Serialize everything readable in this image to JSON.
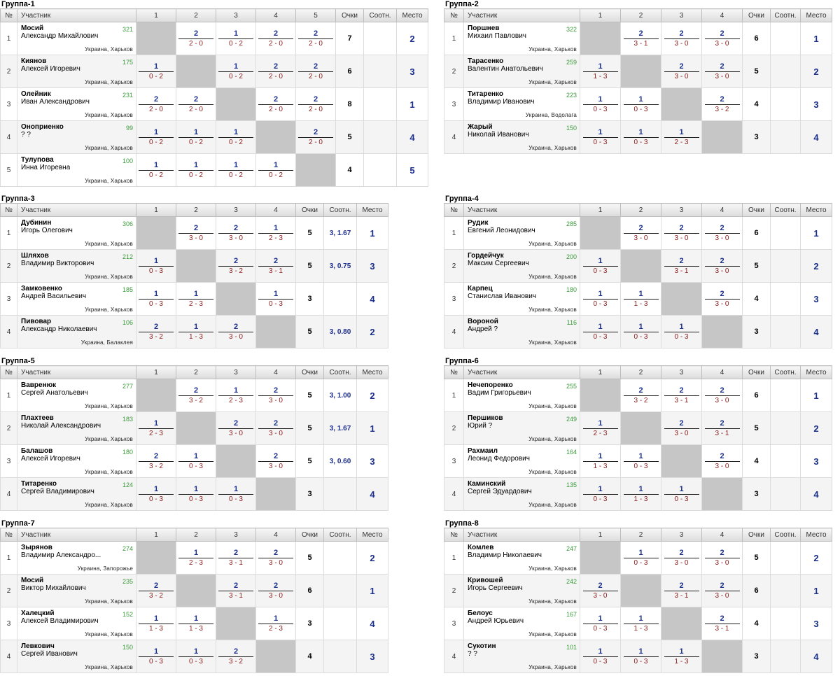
{
  "headers": {
    "num": "№",
    "player": "Участник",
    "points": "Очки",
    "ratio": "Соотн.",
    "place": "Место"
  },
  "groups": [
    {
      "title": "Группа-1",
      "players": [
        {
          "num": "1",
          "name": "Мосий",
          "first": "Александр Михайлович",
          "rating": "321",
          "loc": "Украина, Харьков",
          "results": [
            null,
            [
              "2",
              "2 - 0"
            ],
            [
              "1",
              "0 - 2"
            ],
            [
              "2",
              "2 - 0"
            ],
            [
              "2",
              "2 - 0"
            ]
          ],
          "points": "7",
          "ratio": "",
          "place": "2"
        },
        {
          "num": "2",
          "name": "Киянов",
          "first": "Алексей Игоревич",
          "rating": "175",
          "loc": "Украина, Харьков",
          "results": [
            [
              "1",
              "0 - 2"
            ],
            null,
            [
              "1",
              "0 - 2"
            ],
            [
              "2",
              "2 - 0"
            ],
            [
              "2",
              "2 - 0"
            ]
          ],
          "points": "6",
          "ratio": "",
          "place": "3"
        },
        {
          "num": "3",
          "name": "Олейник",
          "first": "Иван Александрович",
          "rating": "231",
          "loc": "Украина, Харьков",
          "results": [
            [
              "2",
              "2 - 0"
            ],
            [
              "2",
              "2 - 0"
            ],
            null,
            [
              "2",
              "2 - 0"
            ],
            [
              "2",
              "2 - 0"
            ]
          ],
          "points": "8",
          "ratio": "",
          "place": "1"
        },
        {
          "num": "4",
          "name": "Оноприенко",
          "first": "? ?",
          "rating": "99",
          "loc": "Украина, Харьков",
          "results": [
            [
              "1",
              "0 - 2"
            ],
            [
              "1",
              "0 - 2"
            ],
            [
              "1",
              "0 - 2"
            ],
            null,
            [
              "2",
              "2 - 0"
            ]
          ],
          "points": "5",
          "ratio": "",
          "place": "4"
        },
        {
          "num": "5",
          "name": "Тулупова",
          "first": "Инна Игоревна",
          "rating": "100",
          "loc": "Украина, Харьков",
          "results": [
            [
              "1",
              "0 - 2"
            ],
            [
              "1",
              "0 - 2"
            ],
            [
              "1",
              "0 - 2"
            ],
            [
              "1",
              "0 - 2"
            ],
            null
          ],
          "points": "4",
          "ratio": "",
          "place": "5"
        }
      ]
    },
    {
      "title": "Группа-2",
      "players": [
        {
          "num": "1",
          "name": "Поршнев",
          "first": "Михаил Павлович",
          "rating": "322",
          "loc": "Украина, Харьков",
          "results": [
            null,
            [
              "2",
              "3 - 1"
            ],
            [
              "2",
              "3 - 0"
            ],
            [
              "2",
              "3 - 0"
            ]
          ],
          "points": "6",
          "ratio": "",
          "place": "1"
        },
        {
          "num": "2",
          "name": "Тарасенко",
          "first": "Валентин Анатольевич",
          "rating": "259",
          "loc": "Украина, Харьков",
          "results": [
            [
              "1",
              "1 - 3"
            ],
            null,
            [
              "2",
              "3 - 0"
            ],
            [
              "2",
              "3 - 0"
            ]
          ],
          "points": "5",
          "ratio": "",
          "place": "2"
        },
        {
          "num": "3",
          "name": "Титаренко",
          "first": "Владимир Иванович",
          "rating": "223",
          "loc": "Украина, Водолага",
          "results": [
            [
              "1",
              "0 - 3"
            ],
            [
              "1",
              "0 - 3"
            ],
            null,
            [
              "2",
              "3 - 2"
            ]
          ],
          "points": "4",
          "ratio": "",
          "place": "3"
        },
        {
          "num": "4",
          "name": "Жарый",
          "first": "Николай Иванович",
          "rating": "150",
          "loc": "Украина, Харьков",
          "results": [
            [
              "1",
              "0 - 3"
            ],
            [
              "1",
              "0 - 3"
            ],
            [
              "1",
              "2 - 3"
            ],
            null
          ],
          "points": "3",
          "ratio": "",
          "place": "4"
        }
      ]
    },
    {
      "title": "Группа-3",
      "players": [
        {
          "num": "1",
          "name": "Дубинин",
          "first": "Игорь Олегович",
          "rating": "306",
          "loc": "Украина, Харьков",
          "results": [
            null,
            [
              "2",
              "3 - 0"
            ],
            [
              "2",
              "3 - 0"
            ],
            [
              "1",
              "2 - 3"
            ]
          ],
          "points": "5",
          "ratio": "3, 1.67",
          "place": "1"
        },
        {
          "num": "2",
          "name": "Шляхов",
          "first": "Владимир Викторович",
          "rating": "212",
          "loc": "Украина, Харьков",
          "results": [
            [
              "1",
              "0 - 3"
            ],
            null,
            [
              "2",
              "3 - 2"
            ],
            [
              "2",
              "3 - 1"
            ]
          ],
          "points": "5",
          "ratio": "3, 0.75",
          "place": "3"
        },
        {
          "num": "3",
          "name": "Замковенко",
          "first": "Андрей Васильевич",
          "rating": "185",
          "loc": "Украина, Харьков",
          "results": [
            [
              "1",
              "0 - 3"
            ],
            [
              "1",
              "2 - 3"
            ],
            null,
            [
              "1",
              "0 - 3"
            ]
          ],
          "points": "3",
          "ratio": "",
          "place": "4"
        },
        {
          "num": "4",
          "name": "Пивовар",
          "first": "Александр Николаевич",
          "rating": "106",
          "loc": "Украина, Балаклея",
          "results": [
            [
              "2",
              "3 - 2"
            ],
            [
              "1",
              "1 - 3"
            ],
            [
              "2",
              "3 - 0"
            ],
            null
          ],
          "points": "5",
          "ratio": "3, 0.80",
          "place": "2"
        }
      ]
    },
    {
      "title": "Группа-4",
      "players": [
        {
          "num": "1",
          "name": "Рудик",
          "first": "Евгений Леонидович",
          "rating": "285",
          "loc": "Украина, Харьков",
          "results": [
            null,
            [
              "2",
              "3 - 0"
            ],
            [
              "2",
              "3 - 0"
            ],
            [
              "2",
              "3 - 0"
            ]
          ],
          "points": "6",
          "ratio": "",
          "place": "1"
        },
        {
          "num": "2",
          "name": "Гордейчук",
          "first": "Максим Сергеевич",
          "rating": "200",
          "loc": "Украина, Харьков",
          "results": [
            [
              "1",
              "0 - 3"
            ],
            null,
            [
              "2",
              "3 - 1"
            ],
            [
              "2",
              "3 - 0"
            ]
          ],
          "points": "5",
          "ratio": "",
          "place": "2"
        },
        {
          "num": "3",
          "name": "Карпец",
          "first": "Станислав Иванович",
          "rating": "180",
          "loc": "Украина, Харьков",
          "results": [
            [
              "1",
              "0 - 3"
            ],
            [
              "1",
              "1 - 3"
            ],
            null,
            [
              "2",
              "3 - 0"
            ]
          ],
          "points": "4",
          "ratio": "",
          "place": "3"
        },
        {
          "num": "4",
          "name": "Вороной",
          "first": "Андрей ?",
          "rating": "116",
          "loc": "Украина, Харьков",
          "results": [
            [
              "1",
              "0 - 3"
            ],
            [
              "1",
              "0 - 3"
            ],
            [
              "1",
              "0 - 3"
            ],
            null
          ],
          "points": "3",
          "ratio": "",
          "place": "4"
        }
      ]
    },
    {
      "title": "Группа-5",
      "players": [
        {
          "num": "1",
          "name": "Вавренюк",
          "first": "Сергей Анатольевич",
          "rating": "277",
          "loc": "Украина, Харьков",
          "results": [
            null,
            [
              "2",
              "3 - 2"
            ],
            [
              "1",
              "2 - 3"
            ],
            [
              "2",
              "3 - 0"
            ]
          ],
          "points": "5",
          "ratio": "3, 1.00",
          "place": "2"
        },
        {
          "num": "2",
          "name": "Плахтеев",
          "first": "Николай Александрович",
          "rating": "183",
          "loc": "Украина, Харьков",
          "results": [
            [
              "1",
              "2 - 3"
            ],
            null,
            [
              "2",
              "3 - 0"
            ],
            [
              "2",
              "3 - 0"
            ]
          ],
          "points": "5",
          "ratio": "3, 1.67",
          "place": "1"
        },
        {
          "num": "3",
          "name": "Балашов",
          "first": "Алексей Игоревич",
          "rating": "180",
          "loc": "Украина, Харьков",
          "results": [
            [
              "2",
              "3 - 2"
            ],
            [
              "1",
              "0 - 3"
            ],
            null,
            [
              "2",
              "3 - 0"
            ]
          ],
          "points": "5",
          "ratio": "3, 0.60",
          "place": "3"
        },
        {
          "num": "4",
          "name": "Титаренко",
          "first": "Сергей Владимирович",
          "rating": "124",
          "loc": "Украина, Харьков",
          "results": [
            [
              "1",
              "0 - 3"
            ],
            [
              "1",
              "0 - 3"
            ],
            [
              "1",
              "0 - 3"
            ],
            null
          ],
          "points": "3",
          "ratio": "",
          "place": "4"
        }
      ]
    },
    {
      "title": "Группа-6",
      "players": [
        {
          "num": "1",
          "name": "Нечепоренко",
          "first": "Вадим Григорьевич",
          "rating": "255",
          "loc": "Украина, Харьков",
          "results": [
            null,
            [
              "2",
              "3 - 2"
            ],
            [
              "2",
              "3 - 1"
            ],
            [
              "2",
              "3 - 0"
            ]
          ],
          "points": "6",
          "ratio": "",
          "place": "1"
        },
        {
          "num": "2",
          "name": "Першиков",
          "first": "Юрий ?",
          "rating": "249",
          "loc": "Украина, Харьков",
          "results": [
            [
              "1",
              "2 - 3"
            ],
            null,
            [
              "2",
              "3 - 0"
            ],
            [
              "2",
              "3 - 1"
            ]
          ],
          "points": "5",
          "ratio": "",
          "place": "2"
        },
        {
          "num": "3",
          "name": "Рахмаил",
          "first": "Леонид Федорович",
          "rating": "164",
          "loc": "Украина, Харьков",
          "results": [
            [
              "1",
              "1 - 3"
            ],
            [
              "1",
              "0 - 3"
            ],
            null,
            [
              "2",
              "3 - 0"
            ]
          ],
          "points": "4",
          "ratio": "",
          "place": "3"
        },
        {
          "num": "4",
          "name": "Каминский",
          "first": "Сергей Эдуардович",
          "rating": "135",
          "loc": "Украина, Харьков",
          "results": [
            [
              "1",
              "0 - 3"
            ],
            [
              "1",
              "1 - 3"
            ],
            [
              "1",
              "0 - 3"
            ],
            null
          ],
          "points": "3",
          "ratio": "",
          "place": "4"
        }
      ]
    },
    {
      "title": "Группа-7",
      "players": [
        {
          "num": "1",
          "name": "Зырянов",
          "first": "Владимир Александро...",
          "rating": "274",
          "loc": "Украина, Запорожье",
          "results": [
            null,
            [
              "1",
              "2 - 3"
            ],
            [
              "2",
              "3 - 1"
            ],
            [
              "2",
              "3 - 0"
            ]
          ],
          "points": "5",
          "ratio": "",
          "place": "2"
        },
        {
          "num": "2",
          "name": "Мосий",
          "first": "Виктор Михайлович",
          "rating": "235",
          "loc": "Украина, Харьков",
          "results": [
            [
              "2",
              "3 - 2"
            ],
            null,
            [
              "2",
              "3 - 1"
            ],
            [
              "2",
              "3 - 0"
            ]
          ],
          "points": "6",
          "ratio": "",
          "place": "1"
        },
        {
          "num": "3",
          "name": "Халецкий",
          "first": "Алексей Владимирович",
          "rating": "152",
          "loc": "Украина, Харьков",
          "results": [
            [
              "1",
              "1 - 3"
            ],
            [
              "1",
              "1 - 3"
            ],
            null,
            [
              "1",
              "2 - 3"
            ]
          ],
          "points": "3",
          "ratio": "",
          "place": "4"
        },
        {
          "num": "4",
          "name": "Левкович",
          "first": "Сергей Иванович",
          "rating": "150",
          "loc": "Украина, Харьков",
          "results": [
            [
              "1",
              "0 - 3"
            ],
            [
              "1",
              "0 - 3"
            ],
            [
              "2",
              "3 - 2"
            ],
            null
          ],
          "points": "4",
          "ratio": "",
          "place": "3"
        }
      ]
    },
    {
      "title": "Группа-8",
      "players": [
        {
          "num": "1",
          "name": "Комлев",
          "first": "Владимир Николаевич",
          "rating": "247",
          "loc": "Украина, Харьков",
          "results": [
            null,
            [
              "1",
              "0 - 3"
            ],
            [
              "2",
              "3 - 0"
            ],
            [
              "2",
              "3 - 0"
            ]
          ],
          "points": "5",
          "ratio": "",
          "place": "2"
        },
        {
          "num": "2",
          "name": "Кривошей",
          "first": "Игорь Сергеевич",
          "rating": "242",
          "loc": "Украина, Харьков",
          "results": [
            [
              "2",
              "3 - 0"
            ],
            null,
            [
              "2",
              "3 - 1"
            ],
            [
              "2",
              "3 - 0"
            ]
          ],
          "points": "6",
          "ratio": "",
          "place": "1"
        },
        {
          "num": "3",
          "name": "Белоус",
          "first": "Андрей Юрьевич",
          "rating": "167",
          "loc": "Украина, Харьков",
          "results": [
            [
              "1",
              "0 - 3"
            ],
            [
              "1",
              "1 - 3"
            ],
            null,
            [
              "2",
              "3 - 1"
            ]
          ],
          "points": "4",
          "ratio": "",
          "place": "3"
        },
        {
          "num": "4",
          "name": "Сукотин",
          "first": "? ?",
          "rating": "101",
          "loc": "Украина, Харьков",
          "results": [
            [
              "1",
              "0 - 3"
            ],
            [
              "1",
              "0 - 3"
            ],
            [
              "1",
              "1 - 3"
            ],
            null
          ],
          "points": "3",
          "ratio": "",
          "place": "4"
        }
      ]
    }
  ]
}
